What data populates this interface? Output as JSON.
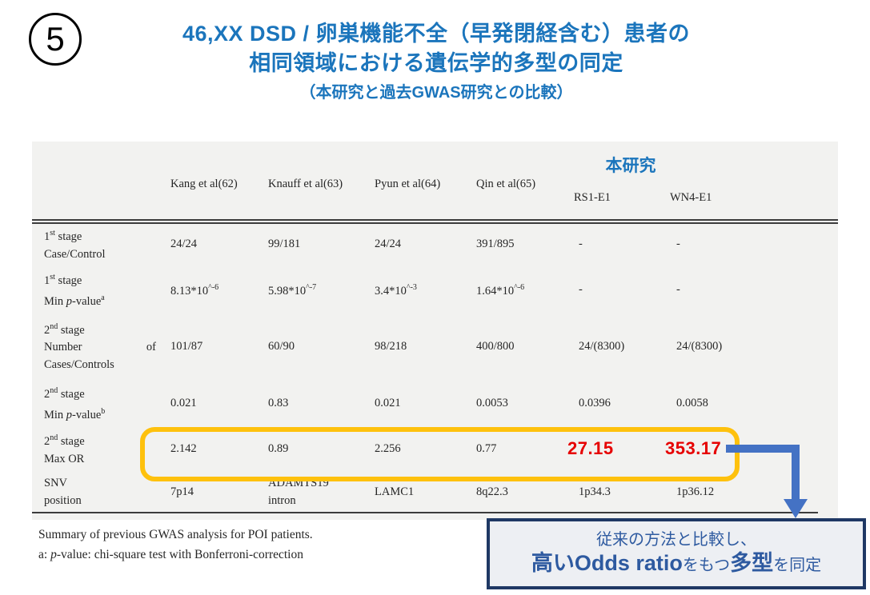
{
  "slide": {
    "badge": "5",
    "title_line1": "46,XX DSD / 卵巣機能不全（早発閉経含む）患者の",
    "title_line2": "相同領域における遺伝学的多型の同定",
    "title_line3": "（本研究と過去GWAS研究との比較）"
  },
  "table": {
    "group_header": "本研究",
    "columns": [
      "Kang et al(62)",
      "Knauff et al(63)",
      "Pyun et al(64)",
      "Qin et al(65)",
      "RS1-E1",
      "WN4-E1"
    ],
    "rows": [
      {
        "label": "1^{st} stage\nCase/Control",
        "cells": [
          "24/24",
          "99/181",
          "24/24",
          "391/895",
          "-",
          "-"
        ]
      },
      {
        "label": "1^{st} stage\nMin ~p~-value^{a}",
        "cells": [
          "8.13*10^{^-6}",
          "5.98*10^{^-7}",
          "3.4*10^{^-3}",
          "1.64*10^{^-6}",
          "-",
          "-"
        ]
      },
      {
        "label": "2^{nd} stage\nNumber\tof\nCases/Controls",
        "cells": [
          "101/87",
          "60/90",
          "98/218",
          "400/800",
          "24/(8300)",
          "24/(8300)"
        ]
      },
      {
        "label": "2^{nd} stage\nMin ~p~-value^{b}",
        "cells": [
          "0.021",
          "0.83",
          "0.021",
          "0.0053",
          "0.0396",
          "0.0058"
        ]
      },
      {
        "label": "2^{nd} stage\nMax OR",
        "cells": [
          "2.142",
          "0.89",
          "2.256",
          "0.77",
          {
            "text": "27.15",
            "emphasis": true
          },
          {
            "text": "353.17",
            "emphasis": true
          }
        ]
      },
      {
        "label": "SNV\nposition",
        "cells": [
          "7p14",
          "ADAMTS19\nintron",
          "LAMC1",
          "8q22.3",
          "1p34.3",
          "1p36.12"
        ]
      }
    ]
  },
  "footnotes": [
    "Summary of previous GWAS analysis for POI patients.",
    "a: ~p~-value: chi-square test with Bonferroni-correction"
  ],
  "callout": {
    "line1": "従来の方法と比較し、",
    "line2_parts": [
      {
        "text": "高いOdds ratio",
        "bold": true
      },
      {
        "text": "をもつ",
        "bold": false
      },
      {
        "text": "多型",
        "bold": true
      },
      {
        "text": "を同定",
        "bold": false
      }
    ]
  },
  "colors": {
    "title_blue": "#1b75bc",
    "highlight_gold": "#fec10d",
    "emphasis_red": "#e60000",
    "arrow_blue": "#4472c4",
    "callout_border_navy": "#1f3864",
    "callout_text_blue": "#2e5aa0",
    "table_bg_gray": "#f2f2f0"
  }
}
